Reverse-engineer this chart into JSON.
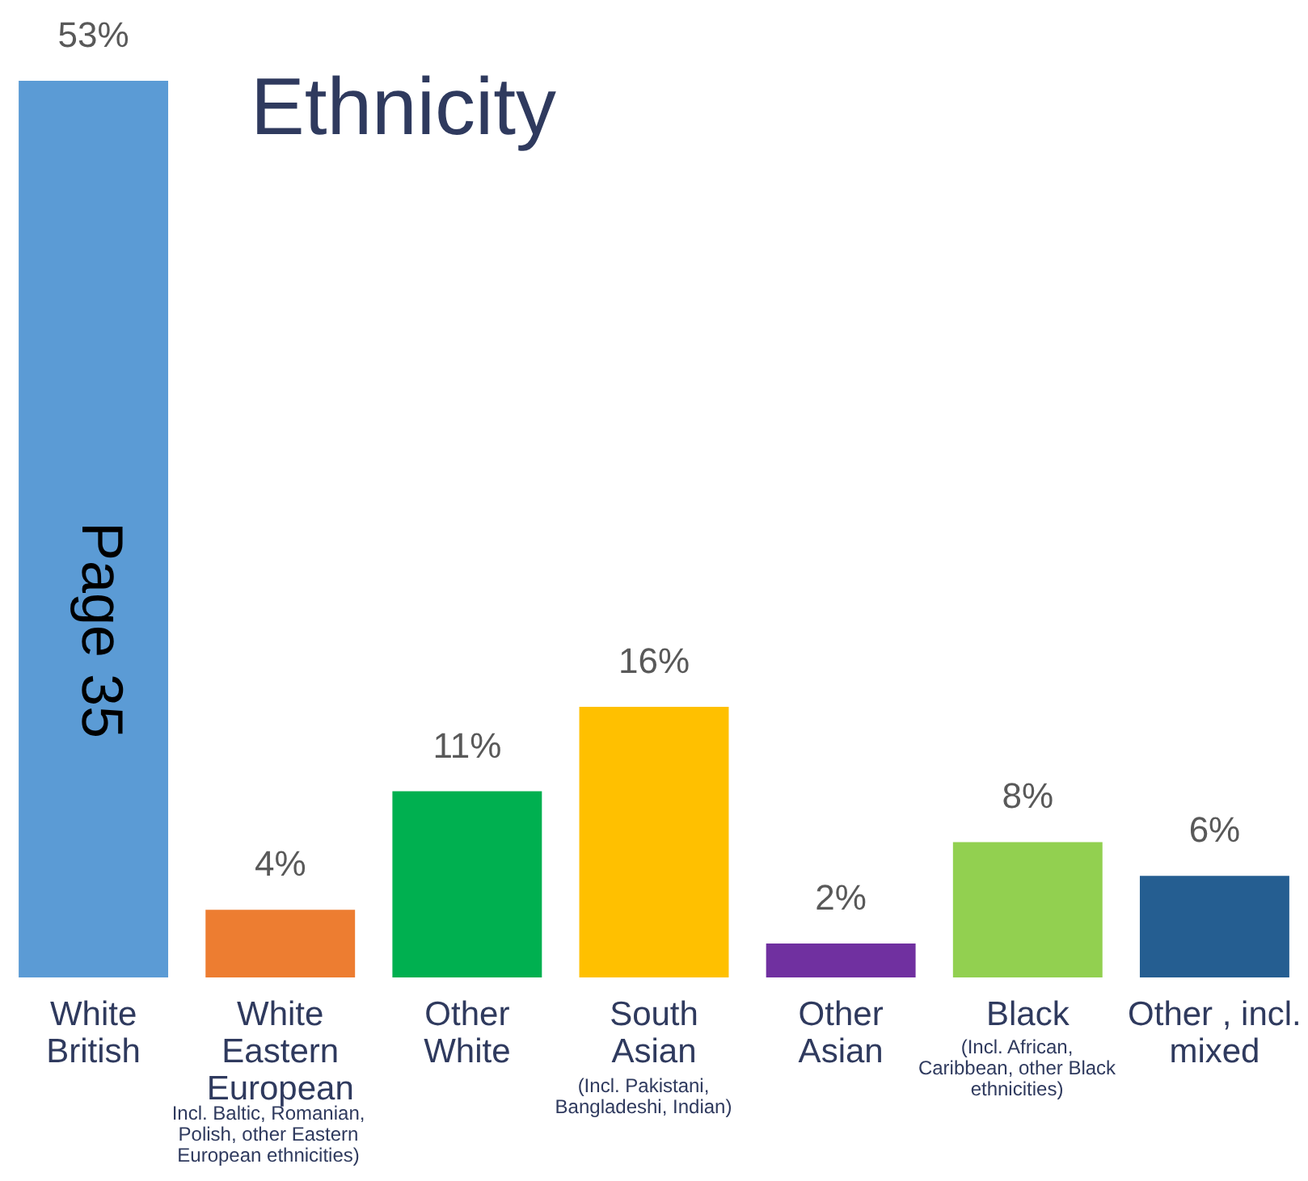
{
  "chart_data": {
    "type": "bar",
    "title": "Ethnicity",
    "categories": [
      "White British",
      "White Eastern European",
      "Other White",
      "South Asian",
      "Other Asian",
      "Black",
      "Other , incl. mixed"
    ],
    "values": [
      53,
      4,
      11,
      16,
      2,
      8,
      6
    ],
    "colors": [
      "#5b9bd5",
      "#ed7d31",
      "#00b050",
      "#ffc000",
      "#7030a0",
      "#92d050",
      "#255e91"
    ],
    "value_labels": [
      "53%",
      "4%",
      "11%",
      "16%",
      "2%",
      "8%",
      "6%"
    ],
    "annotations": [
      "Incl. Baltic, Romanian, Polish, other Eastern European ethnicities)",
      "(Incl. Pakistani, Bangladeshi, Indian)",
      "(Incl. African, Caribbean, other Black ethnicities)",
      "Page 35"
    ]
  }
}
